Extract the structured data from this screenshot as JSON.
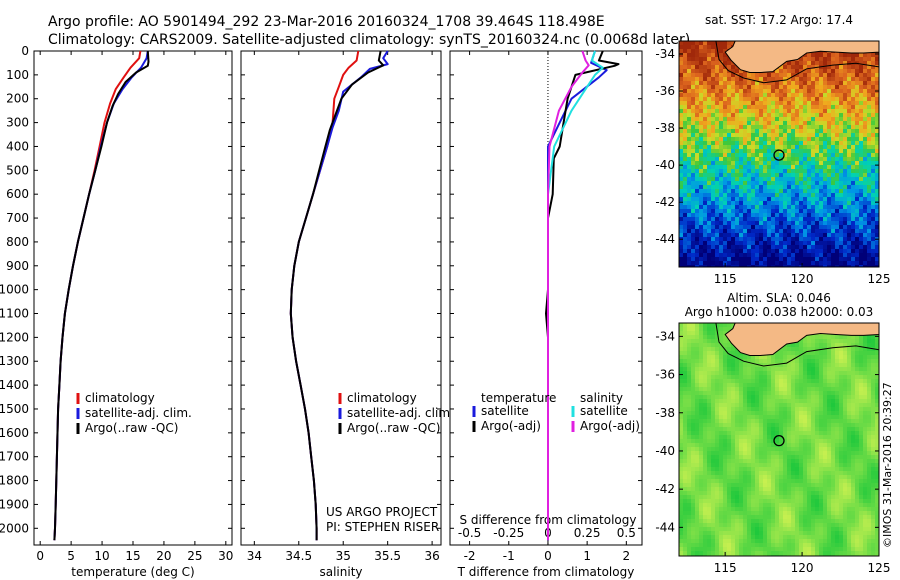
{
  "header": {
    "line1": "Argo profile: AO 5901494_292 23-Mar-2016 20160324_1708 39.464S 118.498E",
    "line2": "Climatology: CARS2009. Satellite-adjusted climatology: synTS_20160324.nc (0.0068d later)"
  },
  "colors": {
    "climatology": "#e01010",
    "satellite": "#1a1adc",
    "argo": "#000000",
    "salinity_satellite": "#20e0e0",
    "salinity_argo": "#e020e0"
  },
  "credit": "©IMOS 31-Mar-2016 20:39:27",
  "chart_data": [
    {
      "type": "line",
      "panel": "temperature",
      "xlabel": "temperature (deg C)",
      "xlim": [
        -1,
        31
      ],
      "xticks": [
        0,
        5,
        10,
        15,
        20,
        25,
        30
      ],
      "ylim": [
        2070,
        0
      ],
      "yticks": [
        0,
        100,
        200,
        300,
        400,
        500,
        600,
        700,
        800,
        900,
        1000,
        1100,
        1200,
        1300,
        1400,
        1500,
        1600,
        1700,
        1800,
        1900,
        2000
      ],
      "legend": [
        "climatology",
        "satellite-adj. clim.",
        "Argo(..raw -QC)"
      ],
      "series": [
        {
          "name": "climatology",
          "role": "clim",
          "points": [
            [
              16.2,
              0
            ],
            [
              16.0,
              30
            ],
            [
              14.6,
              70
            ],
            [
              13.5,
              110
            ],
            [
              12.2,
              160
            ],
            [
              11.3,
              220
            ],
            [
              10.4,
              300
            ],
            [
              9.6,
              400
            ],
            [
              8.8,
              500
            ],
            [
              7.9,
              600
            ],
            [
              7.0,
              700
            ],
            [
              6.1,
              800
            ],
            [
              5.3,
              900
            ],
            [
              4.6,
              1000
            ],
            [
              4.0,
              1100
            ],
            [
              3.6,
              1200
            ],
            [
              3.3,
              1300
            ],
            [
              3.1,
              1400
            ],
            [
              2.9,
              1500
            ],
            [
              2.8,
              1600
            ],
            [
              2.7,
              1700
            ],
            [
              2.6,
              1800
            ],
            [
              2.5,
              1900
            ],
            [
              2.4,
              2000
            ],
            [
              2.3,
              2050
            ]
          ]
        },
        {
          "name": "satellite-adj. clim.",
          "role": "sat",
          "points": [
            [
              17.4,
              0
            ],
            [
              17.2,
              30
            ],
            [
              16.3,
              70
            ],
            [
              14.8,
              110
            ],
            [
              13.3,
              160
            ],
            [
              11.9,
              220
            ],
            [
              10.8,
              300
            ],
            [
              9.8,
              400
            ],
            [
              8.9,
              500
            ],
            [
              7.9,
              600
            ],
            [
              7.0,
              700
            ],
            [
              6.1,
              800
            ],
            [
              5.3,
              900
            ],
            [
              4.6,
              1000
            ],
            [
              4.0,
              1100
            ],
            [
              3.6,
              1200
            ],
            [
              3.3,
              1300
            ],
            [
              3.1,
              1400
            ],
            [
              2.9,
              1500
            ],
            [
              2.8,
              1600
            ],
            [
              2.7,
              1700
            ],
            [
              2.6,
              1800
            ],
            [
              2.5,
              1900
            ],
            [
              2.4,
              2000
            ],
            [
              2.3,
              2050
            ]
          ]
        },
        {
          "name": "Argo(..raw -QC)",
          "role": "argo",
          "points": [
            [
              17.4,
              0
            ],
            [
              17.5,
              45
            ],
            [
              17.4,
              62
            ],
            [
              15.5,
              90
            ],
            [
              13.8,
              130
            ],
            [
              12.6,
              180
            ],
            [
              11.7,
              230
            ],
            [
              10.8,
              300
            ],
            [
              9.9,
              400
            ],
            [
              8.9,
              500
            ],
            [
              7.9,
              600
            ],
            [
              7.0,
              700
            ],
            [
              6.1,
              800
            ],
            [
              5.3,
              900
            ],
            [
              4.6,
              1000
            ],
            [
              4.0,
              1100
            ],
            [
              3.6,
              1200
            ],
            [
              3.3,
              1300
            ],
            [
              3.1,
              1400
            ],
            [
              2.9,
              1500
            ],
            [
              2.8,
              1600
            ],
            [
              2.7,
              1700
            ],
            [
              2.6,
              1800
            ],
            [
              2.5,
              1900
            ],
            [
              2.4,
              2000
            ],
            [
              2.3,
              2050
            ]
          ]
        }
      ]
    },
    {
      "type": "line",
      "panel": "salinity",
      "xlabel": "salinity",
      "xlim": [
        33.85,
        36.1
      ],
      "xticks": [
        34,
        34.5,
        35,
        35.5,
        36
      ],
      "ylim": [
        2070,
        0
      ],
      "legend": [
        "climatology",
        "satellite-adj. clim.",
        "Argo(..raw -QC)"
      ],
      "annotation": [
        "US ARGO PROJECT",
        "PI: STEPHEN RISER"
      ],
      "series": [
        {
          "name": "climatology",
          "role": "clim",
          "points": [
            [
              35.17,
              0
            ],
            [
              35.15,
              40
            ],
            [
              35.06,
              70
            ],
            [
              35.0,
              100
            ],
            [
              34.95,
              150
            ],
            [
              34.9,
              200
            ],
            [
              34.88,
              300
            ],
            [
              34.82,
              400
            ],
            [
              34.74,
              500
            ],
            [
              34.66,
              600
            ],
            [
              34.58,
              700
            ],
            [
              34.5,
              800
            ],
            [
              34.45,
              900
            ],
            [
              34.42,
              1000
            ],
            [
              34.41,
              1100
            ],
            [
              34.43,
              1200
            ],
            [
              34.47,
              1300
            ],
            [
              34.52,
              1400
            ],
            [
              34.57,
              1500
            ],
            [
              34.61,
              1600
            ],
            [
              34.64,
              1700
            ],
            [
              34.67,
              1800
            ],
            [
              34.69,
              1900
            ],
            [
              34.7,
              2000
            ],
            [
              34.7,
              2050
            ]
          ]
        },
        {
          "name": "satellite-adj. clim.",
          "role": "sat",
          "points": [
            [
              35.5,
              0
            ],
            [
              35.45,
              30
            ],
            [
              35.5,
              55
            ],
            [
              35.3,
              75
            ],
            [
              35.2,
              110
            ],
            [
              35.0,
              170
            ],
            [
              34.95,
              250
            ],
            [
              34.88,
              320
            ],
            [
              34.82,
              400
            ],
            [
              34.74,
              500
            ],
            [
              34.66,
              600
            ],
            [
              34.58,
              700
            ],
            [
              34.5,
              800
            ],
            [
              34.45,
              900
            ],
            [
              34.42,
              1000
            ],
            [
              34.41,
              1100
            ],
            [
              34.43,
              1200
            ],
            [
              34.47,
              1300
            ],
            [
              34.52,
              1400
            ],
            [
              34.57,
              1500
            ],
            [
              34.61,
              1600
            ],
            [
              34.64,
              1700
            ],
            [
              34.67,
              1800
            ],
            [
              34.69,
              1900
            ],
            [
              34.7,
              2000
            ],
            [
              34.7,
              2050
            ]
          ]
        },
        {
          "name": "Argo(..raw -QC)",
          "role": "argo",
          "points": [
            [
              35.42,
              0
            ],
            [
              35.4,
              40
            ],
            [
              35.45,
              60
            ],
            [
              35.28,
              90
            ],
            [
              35.1,
              140
            ],
            [
              34.98,
              200
            ],
            [
              34.92,
              260
            ],
            [
              34.85,
              330
            ],
            [
              34.8,
              400
            ],
            [
              34.73,
              500
            ],
            [
              34.66,
              600
            ],
            [
              34.58,
              700
            ],
            [
              34.5,
              800
            ],
            [
              34.45,
              900
            ],
            [
              34.42,
              1000
            ],
            [
              34.41,
              1100
            ],
            [
              34.43,
              1200
            ],
            [
              34.47,
              1300
            ],
            [
              34.52,
              1400
            ],
            [
              34.57,
              1500
            ],
            [
              34.61,
              1600
            ],
            [
              34.64,
              1700
            ],
            [
              34.67,
              1800
            ],
            [
              34.69,
              1900
            ],
            [
              34.7,
              2000
            ],
            [
              34.7,
              2050
            ]
          ]
        }
      ]
    },
    {
      "type": "line",
      "panel": "difference",
      "xlabel": "T difference from climatology",
      "xlabel_top": "S difference from climatology",
      "xlim": [
        -2.5,
        2.4
      ],
      "xticks": [
        -2,
        -1,
        0,
        1,
        2
      ],
      "xticks_top": [
        -0.5,
        -0.25,
        0,
        0.25,
        0.5
      ],
      "ylim": [
        2070,
        0
      ],
      "legend_groups": [
        "temperature",
        "salinity"
      ],
      "legend": [
        "satellite",
        "Argo(-adj)",
        "satellite",
        "Argo(-adj)"
      ],
      "series": [
        {
          "name": "satellite",
          "role": "sat",
          "group": "temperature",
          "points": [
            [
              1.2,
              0
            ],
            [
              1.1,
              50
            ],
            [
              1.5,
              80
            ],
            [
              1.3,
              110
            ],
            [
              0.6,
              200
            ],
            [
              0.3,
              300
            ],
            [
              0.0,
              400
            ],
            [
              0.0,
              500
            ],
            [
              0.0,
              700
            ],
            [
              0.0,
              1000
            ],
            [
              0.0,
              1500
            ],
            [
              0.0,
              2050
            ]
          ]
        },
        {
          "name": "Argo(-adj)",
          "role": "argo",
          "group": "temperature",
          "points": [
            [
              1.4,
              0
            ],
            [
              1.3,
              40
            ],
            [
              1.8,
              55
            ],
            [
              1.7,
              62
            ],
            [
              0.7,
              100
            ],
            [
              0.6,
              150
            ],
            [
              0.5,
              200
            ],
            [
              0.4,
              300
            ],
            [
              0.3,
              400
            ],
            [
              0.15,
              450
            ],
            [
              0.12,
              600
            ],
            [
              0.0,
              700
            ],
            [
              0.0,
              900
            ],
            [
              0.0,
              1000
            ],
            [
              -0.05,
              1100
            ],
            [
              0.0,
              1200
            ],
            [
              0.0,
              1500
            ],
            [
              0.0,
              2050
            ]
          ]
        },
        {
          "name": "satellite",
          "role": "ssat",
          "group": "salinity",
          "points": [
            [
              0.3,
              0
            ],
            [
              0.28,
              40
            ],
            [
              0.35,
              70
            ],
            [
              0.3,
              100
            ],
            [
              0.25,
              150
            ],
            [
              0.15,
              250
            ],
            [
              0.04,
              400
            ],
            [
              0.0,
              600
            ],
            [
              0.0,
              800
            ],
            [
              0.0,
              2050
            ]
          ]
        },
        {
          "name": "Argo(-adj)",
          "role": "sargo",
          "group": "salinity",
          "points": [
            [
              0.22,
              0
            ],
            [
              0.24,
              40
            ],
            [
              0.26,
              60
            ],
            [
              0.22,
              90
            ],
            [
              0.15,
              150
            ],
            [
              0.07,
              250
            ],
            [
              0.01,
              400
            ],
            [
              0.0,
              600
            ],
            [
              0.0,
              900
            ],
            [
              0.0,
              2050
            ]
          ]
        }
      ]
    },
    {
      "type": "heatmap",
      "panel": "sst_map",
      "title": "sat. SST: 17.2  Argo: 17.4",
      "xlim": [
        112,
        125
      ],
      "ylim": [
        -45.5,
        -33.3
      ],
      "xticks": [
        115,
        120,
        125
      ],
      "yticks": [
        -34,
        -36,
        -38,
        -40,
        -42,
        -44
      ],
      "argo_position": [
        118.5,
        -39.46
      ]
    },
    {
      "type": "heatmap",
      "panel": "sla_map",
      "title": "Altim. SLA: 0.046",
      "subtitle": "Argo h1000: 0.038  h2000: 0.03",
      "xlim": [
        112,
        125
      ],
      "ylim": [
        -45.5,
        -33.3
      ],
      "xticks": [
        115,
        120,
        125
      ],
      "yticks": [
        -34,
        -36,
        -38,
        -40,
        -42,
        -44
      ],
      "argo_position": [
        118.5,
        -39.46
      ]
    }
  ]
}
